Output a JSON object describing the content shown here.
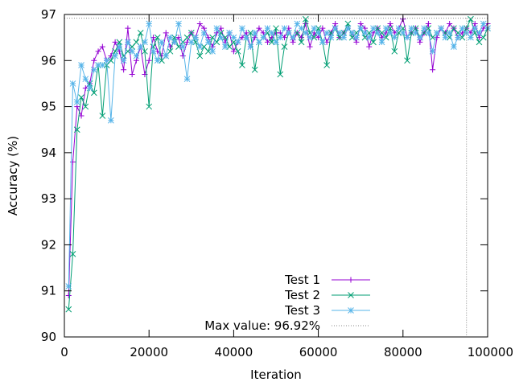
{
  "chart_data": {
    "type": "line",
    "title": "",
    "xlabel": "Iteration",
    "ylabel": "Accuracy (%)",
    "xlim": [
      0,
      100000
    ],
    "ylim": [
      90,
      97
    ],
    "xticks": [
      0,
      20000,
      40000,
      60000,
      80000,
      100000
    ],
    "yticks": [
      90,
      91,
      92,
      93,
      94,
      95,
      96,
      97
    ],
    "grid": false,
    "legend_position": "bottom-right",
    "x_step": 1000,
    "x_start": 1000,
    "series": [
      {
        "name": "Test 1",
        "color": "#9400d3",
        "marker": "plus",
        "values": [
          90.9,
          93.8,
          95.0,
          94.8,
          95.4,
          95.5,
          96.0,
          96.2,
          96.3,
          96.0,
          96.1,
          96.4,
          96.2,
          95.8,
          96.7,
          95.7,
          96.0,
          96.3,
          95.7,
          96.0,
          96.5,
          96.2,
          96.1,
          96.6,
          96.3,
          96.4,
          96.5,
          96.1,
          96.4,
          96.6,
          96.5,
          96.8,
          96.7,
          96.5,
          96.3,
          96.6,
          96.7,
          96.4,
          96.6,
          96.2,
          96.4,
          96.5,
          96.6,
          96.3,
          96.5,
          96.7,
          96.6,
          96.4,
          96.5,
          96.6,
          96.6,
          96.5,
          96.7,
          96.4,
          96.6,
          96.5,
          96.8,
          96.3,
          96.6,
          96.5,
          96.7,
          96.4,
          96.6,
          96.8,
          96.5,
          96.6,
          96.7,
          96.6,
          96.4,
          96.8,
          96.7,
          96.3,
          96.6,
          96.7,
          96.5,
          96.6,
          96.8,
          96.6,
          96.7,
          96.9,
          96.5,
          96.6,
          96.7,
          96.4,
          96.6,
          96.8,
          95.8,
          96.5,
          96.7,
          96.6,
          96.8,
          96.7,
          96.5,
          96.6,
          96.7,
          96.6,
          96.8,
          96.5,
          96.7,
          96.8
        ]
      },
      {
        "name": "Test 2",
        "color": "#009e73",
        "marker": "cross",
        "values": [
          90.6,
          91.8,
          94.5,
          95.2,
          95.0,
          95.5,
          95.3,
          95.9,
          94.8,
          95.9,
          96.0,
          96.2,
          96.4,
          96.1,
          96.2,
          96.3,
          96.4,
          96.6,
          96.2,
          95.0,
          96.3,
          96.5,
          96.0,
          96.1,
          96.2,
          96.5,
          96.3,
          96.4,
          96.5,
          96.6,
          96.4,
          96.1,
          96.3,
          96.2,
          96.5,
          96.4,
          96.6,
          96.5,
          96.3,
          96.4,
          96.2,
          95.9,
          96.5,
          96.6,
          95.8,
          96.4,
          96.5,
          96.6,
          96.4,
          96.7,
          95.7,
          96.3,
          96.6,
          96.5,
          96.6,
          96.4,
          96.9,
          96.6,
          96.5,
          96.7,
          96.4,
          95.9,
          96.6,
          96.7,
          96.5,
          96.6,
          96.8,
          96.5,
          96.6,
          96.7,
          96.5,
          96.6,
          96.4,
          96.7,
          96.6,
          96.5,
          96.7,
          96.2,
          96.6,
          96.7,
          96.0,
          96.6,
          96.7,
          96.5,
          96.6,
          96.7,
          96.5,
          96.6,
          96.7,
          96.6,
          96.5,
          96.7,
          96.6,
          96.5,
          96.7,
          96.9,
          96.6,
          96.4,
          96.5,
          96.7
        ]
      },
      {
        "name": "Test 3",
        "color": "#56b4e9",
        "marker": "star",
        "values": [
          91.1,
          95.5,
          95.1,
          95.9,
          95.6,
          95.4,
          95.8,
          95.9,
          95.9,
          96.0,
          94.7,
          96.1,
          96.3,
          96.0,
          96.4,
          96.2,
          96.1,
          96.3,
          96.4,
          96.8,
          96.2,
          96.0,
          96.4,
          96.1,
          96.5,
          96.4,
          96.8,
          96.3,
          95.6,
          96.4,
          96.5,
          96.3,
          96.6,
          96.4,
          96.2,
          96.7,
          96.5,
          96.3,
          96.6,
          96.5,
          96.4,
          96.7,
          96.5,
          96.3,
          96.6,
          96.4,
          96.5,
          96.7,
          96.6,
          96.4,
          96.5,
          96.7,
          96.6,
          96.5,
          96.8,
          96.7,
          96.6,
          96.5,
          96.7,
          96.6,
          96.4,
          96.6,
          96.5,
          96.7,
          96.6,
          96.5,
          96.7,
          96.6,
          96.5,
          96.7,
          96.6,
          96.5,
          96.7,
          96.6,
          96.4,
          96.7,
          96.6,
          96.5,
          96.7,
          96.6,
          96.5,
          96.7,
          96.6,
          96.5,
          96.7,
          96.6,
          96.2,
          96.6,
          96.7,
          96.5,
          96.6,
          96.3,
          96.5,
          96.7,
          96.6,
          96.5,
          96.7,
          96.6,
          96.8,
          96.7
        ]
      }
    ],
    "reference": {
      "name": "Max value: 96.92%",
      "value": 96.92,
      "at_iteration": 95000,
      "color": "#888888",
      "style": "dotted"
    }
  }
}
